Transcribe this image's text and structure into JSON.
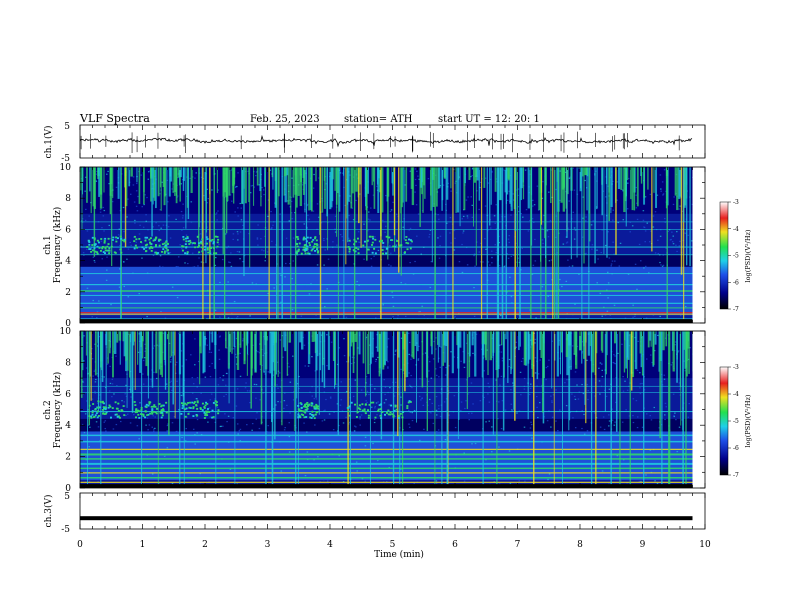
{
  "header": {
    "title": "VLF  Spectra",
    "date": "Feb. 25, 2023",
    "station": "station= ATH",
    "start": "start  UT  =    12: 20: 1"
  },
  "chart_data": [
    {
      "type": "line",
      "name": "ch1-waveform",
      "ylabel": "ch.1(V)",
      "ylim": [
        -5,
        5
      ],
      "ytick_labels": [
        "5",
        "-5"
      ],
      "xlim": [
        0,
        10
      ],
      "approx_level_v": 0.2
    },
    {
      "type": "heatmap",
      "name": "ch1-spectrogram",
      "ylabel_lines": [
        "ch.1",
        "Frequency  (kHz)"
      ],
      "ylim": [
        0,
        10
      ],
      "ytick_labels": [
        "0",
        "2",
        "4",
        "6",
        "8",
        "10"
      ],
      "data_end_min": 9.8,
      "colorbar": {
        "label": "log(PSD)(V²/Hz)",
        "range": [
          -7,
          -3
        ],
        "tick_labels": [
          "-3",
          "-4",
          "-5",
          "-6",
          "-7"
        ]
      }
    },
    {
      "type": "heatmap",
      "name": "ch2-spectrogram",
      "ylabel_lines": [
        "ch.2",
        "Frequency  (kHz)"
      ],
      "ylim": [
        0,
        10
      ],
      "ytick_labels": [
        "0",
        "2",
        "4",
        "6",
        "8",
        "10"
      ],
      "data_end_min": 9.8,
      "colorbar": {
        "label": "log(PSD)(V²/Hz)",
        "range": [
          -7,
          -3
        ],
        "tick_labels": [
          "-3",
          "-4",
          "-5",
          "-6",
          "-7"
        ]
      }
    },
    {
      "type": "line",
      "name": "ch3-waveform",
      "ylabel": "ch.3(V)",
      "ylim": [
        -5,
        5
      ],
      "ytick_labels": [
        "5",
        "-5"
      ],
      "approx_level_v": -2,
      "xlabel": "Time  (min)",
      "xlim": [
        0,
        10
      ],
      "xtick_labels": [
        "0",
        "1",
        "2",
        "3",
        "4",
        "5",
        "6",
        "7",
        "8",
        "9",
        "10"
      ]
    }
  ],
  "colors": {
    "background_low": "#00007a",
    "dark_blue": "#0a1a9a",
    "blue": "#1e50d8",
    "cyan": "#1fc8e0",
    "green": "#2fd86a",
    "yellow": "#f0e01e",
    "red": "#e8201e"
  }
}
